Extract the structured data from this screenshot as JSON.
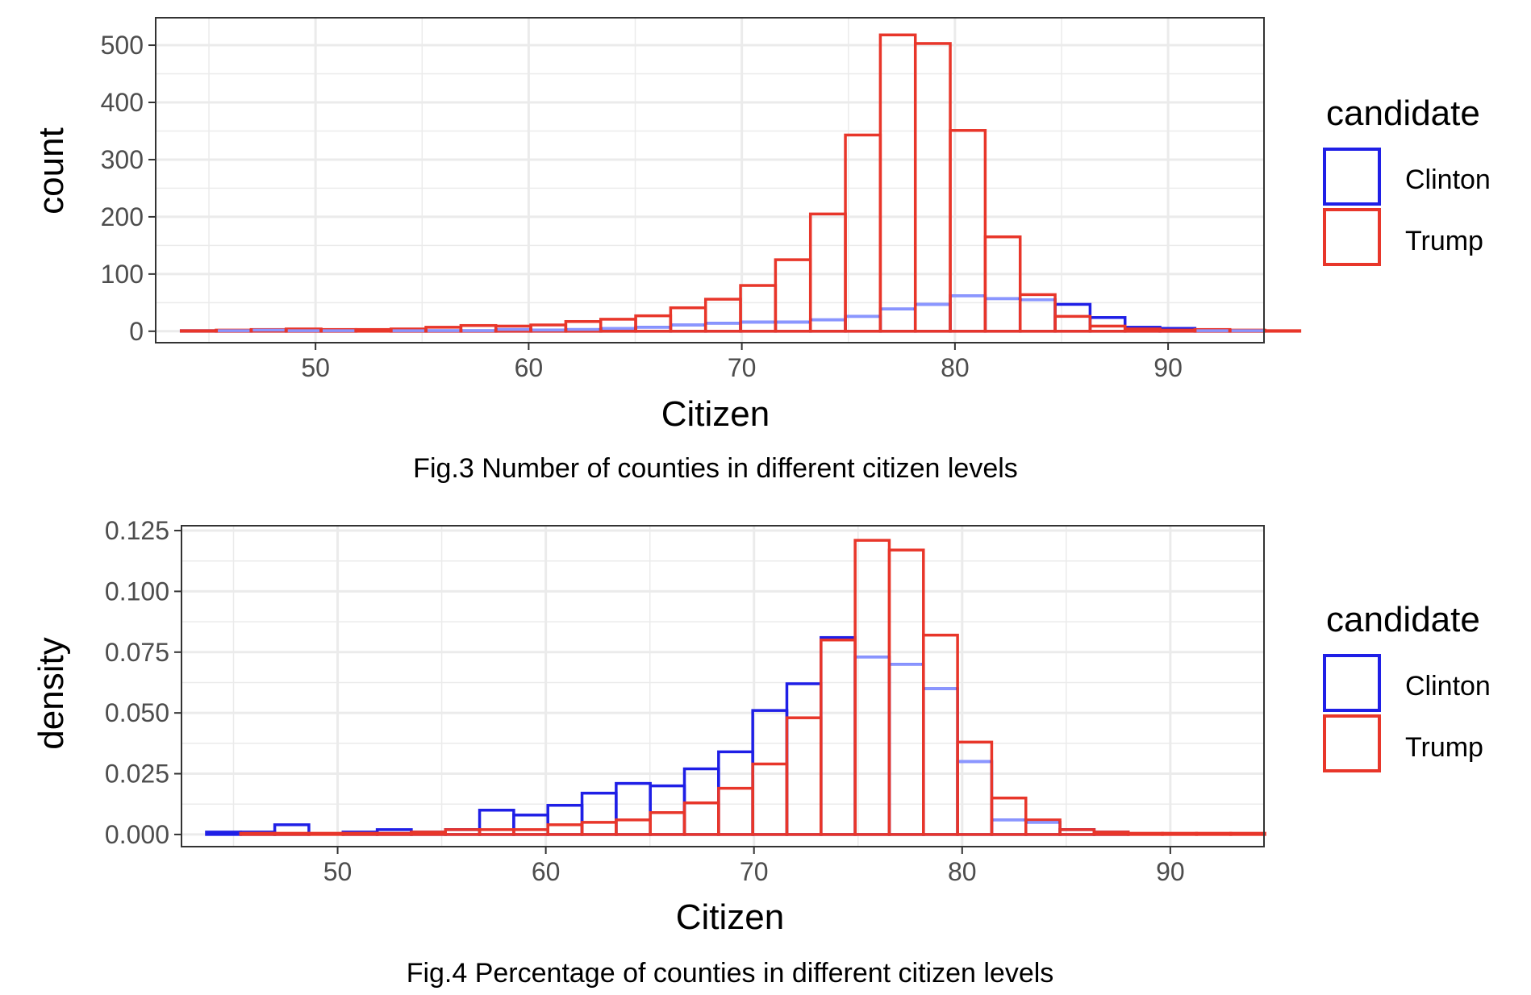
{
  "colors": {
    "clinton": "#1f1fe6",
    "trump": "#e8362a",
    "overlap": "#8a96ff",
    "grid": "#ebebeb",
    "panel_border": "#333333",
    "text": "#4d4d4d"
  },
  "chart_data": [
    {
      "type": "histogram",
      "title": "",
      "caption": "Fig.3 Number of counties in different citizen levels",
      "xlabel": "Citizen",
      "ylabel": "count",
      "xlim": [
        42.5,
        94.5
      ],
      "ylim": [
        -20,
        548
      ],
      "x_ticks": [
        50,
        60,
        70,
        80,
        90
      ],
      "y_ticks": [
        0,
        100,
        200,
        300,
        400,
        500
      ],
      "y_tick_labels": [
        "0",
        "100",
        "200",
        "300",
        "400",
        "500"
      ],
      "bins_start": 43.7,
      "bin_width": 1.64,
      "grid": true,
      "legend": {
        "title": "candidate",
        "position": "right"
      },
      "series": [
        {
          "name": "Clinton",
          "values": [
            1,
            1,
            2,
            1,
            1,
            0,
            1,
            1,
            1,
            3,
            2,
            3,
            5,
            7,
            11,
            14,
            16,
            16,
            20,
            26,
            39,
            47,
            62,
            57,
            55,
            47,
            24,
            7,
            5,
            1,
            1,
            0,
            0,
            0,
            0,
            0
          ]
        },
        {
          "name": "Trump",
          "values": [
            1,
            2,
            3,
            4,
            3,
            3,
            4,
            7,
            10,
            9,
            11,
            17,
            21,
            27,
            41,
            56,
            80,
            125,
            205,
            343,
            518,
            503,
            351,
            165,
            64,
            26,
            9,
            4,
            2,
            3,
            2,
            1,
            0,
            0,
            0,
            0
          ]
        }
      ]
    },
    {
      "type": "histogram",
      "title": "",
      "caption": "Fig.4 Percentage of counties in different citizen levels",
      "xlabel": "Citizen",
      "ylabel": "density",
      "xlim": [
        42.5,
        94.5
      ],
      "ylim": [
        -0.005,
        0.127
      ],
      "x_ticks": [
        50,
        60,
        70,
        80,
        90
      ],
      "y_ticks": [
        0,
        0.025,
        0.05,
        0.075,
        0.1,
        0.125
      ],
      "y_tick_labels": [
        "0.000",
        "0.025",
        "0.050",
        "0.075",
        "0.100",
        "0.125"
      ],
      "bins_start": 43.7,
      "bin_width": 1.64,
      "grid": true,
      "legend": {
        "title": "candidate",
        "position": "right"
      },
      "series": [
        {
          "name": "Clinton",
          "values": [
            0.001,
            0.001,
            0.004,
            0,
            0.001,
            0.002,
            0.001,
            0.002,
            0.01,
            0.008,
            0.012,
            0.017,
            0.021,
            0.02,
            0.027,
            0.034,
            0.051,
            0.062,
            0.081,
            0.073,
            0.07,
            0.06,
            0.03,
            0.006,
            0.005,
            0.002,
            0.001,
            0,
            0,
            0,
            0,
            0
          ]
        },
        {
          "name": "Trump",
          "values": [
            0,
            0.0005,
            0.0005,
            0.0005,
            0.0005,
            0.0005,
            0.001,
            0.002,
            0.002,
            0.002,
            0.004,
            0.005,
            0.006,
            0.009,
            0.013,
            0.019,
            0.029,
            0.048,
            0.08,
            0.121,
            0.117,
            0.082,
            0.038,
            0.015,
            0.006,
            0.002,
            0.001,
            0.0005,
            0.0005,
            0.0005,
            0.0005,
            0
          ]
        }
      ]
    }
  ]
}
